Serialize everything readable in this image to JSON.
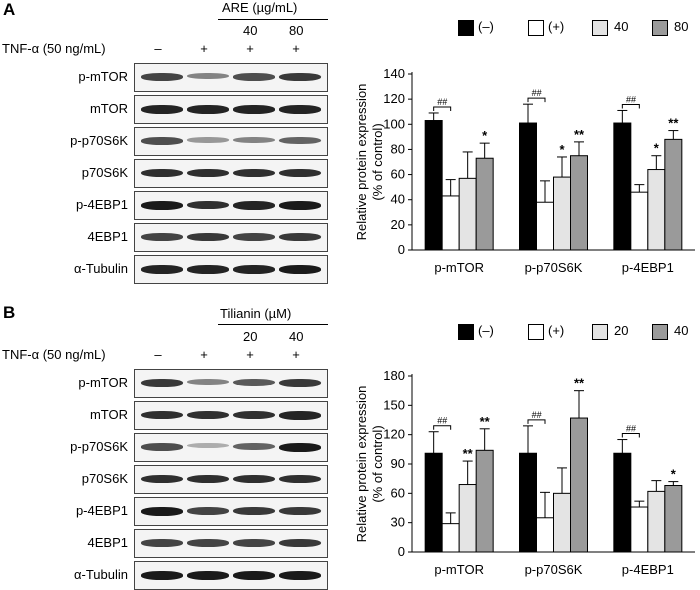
{
  "panels": [
    {
      "letter": "A",
      "treatment": "ARE (µg/mL)",
      "tnf_label": "TNF-α (50 ng/mL)",
      "doses": [
        "40",
        "80"
      ],
      "tnf_signs": [
        "–",
        "+",
        "+",
        "+"
      ],
      "blot_rows": [
        {
          "label": "p-mTOR",
          "intensity": [
            0.75,
            0.45,
            0.7,
            0.8
          ]
        },
        {
          "label": "mTOR",
          "intensity": [
            0.9,
            0.9,
            0.9,
            0.9
          ]
        },
        {
          "label": "p-p70S6K",
          "intensity": [
            0.7,
            0.35,
            0.45,
            0.6
          ]
        },
        {
          "label": "p70S6K",
          "intensity": [
            0.85,
            0.85,
            0.85,
            0.85
          ]
        },
        {
          "label": "p-4EBP1",
          "intensity": [
            0.95,
            0.85,
            0.9,
            0.95
          ]
        },
        {
          "label": "4EBP1",
          "intensity": [
            0.75,
            0.8,
            0.75,
            0.8
          ]
        },
        {
          "label": "α-Tubulin",
          "intensity": [
            0.9,
            0.9,
            0.9,
            0.95
          ]
        }
      ],
      "legend": [
        "(–)",
        "(+)",
        "40",
        "80"
      ],
      "chart_data": {
        "type": "bar",
        "ylabel": "Relative protein expression\n(% of control)",
        "ylim": [
          0,
          140
        ],
        "yticks": [
          0,
          20,
          40,
          60,
          80,
          100,
          120,
          140
        ],
        "categories": [
          "p-mTOR",
          "p-p70S6K",
          "p-4EBP1"
        ],
        "series": [
          {
            "name": "(–)",
            "color": "#000000",
            "values": [
              103,
              101,
              101
            ],
            "errors": [
              6,
              15,
              10
            ]
          },
          {
            "name": "(+)",
            "color": "#ffffff",
            "values": [
              43,
              38,
              46
            ],
            "errors": [
              13,
              17,
              6
            ]
          },
          {
            "name": "40",
            "color": "#e4e4e4",
            "values": [
              57,
              58,
              64
            ],
            "errors": [
              21,
              16,
              11
            ]
          },
          {
            "name": "80",
            "color": "#9a9a9a",
            "values": [
              73,
              75,
              88
            ],
            "errors": [
              12,
              11,
              7
            ]
          }
        ],
        "significance": [
          {
            "category": 0,
            "series": 3,
            "label": "*"
          },
          {
            "category": 1,
            "series": 2,
            "label": "*"
          },
          {
            "category": 1,
            "series": 3,
            "label": "**"
          },
          {
            "category": 2,
            "series": 2,
            "label": "*"
          },
          {
            "category": 2,
            "series": 3,
            "label": "**"
          }
        ],
        "brackets": [
          {
            "category": 0,
            "label": "##"
          },
          {
            "category": 1,
            "label": "##"
          },
          {
            "category": 2,
            "label": "##"
          }
        ]
      }
    },
    {
      "letter": "B",
      "treatment": "Tilianin (µM)",
      "tnf_label": "TNF-α (50 ng/mL)",
      "doses": [
        "20",
        "40"
      ],
      "tnf_signs": [
        "–",
        "+",
        "+",
        "+"
      ],
      "blot_rows": [
        {
          "label": "p-mTOR",
          "intensity": [
            0.8,
            0.45,
            0.65,
            0.8
          ]
        },
        {
          "label": "mTOR",
          "intensity": [
            0.85,
            0.85,
            0.85,
            0.9
          ]
        },
        {
          "label": "p-p70S6K",
          "intensity": [
            0.7,
            0.25,
            0.6,
            0.95
          ]
        },
        {
          "label": "p70S6K",
          "intensity": [
            0.85,
            0.85,
            0.85,
            0.85
          ]
        },
        {
          "label": "p-4EBP1",
          "intensity": [
            0.95,
            0.75,
            0.8,
            0.8
          ]
        },
        {
          "label": "4EBP1",
          "intensity": [
            0.75,
            0.75,
            0.75,
            0.8
          ]
        },
        {
          "label": "α-Tubulin",
          "intensity": [
            0.95,
            0.95,
            0.95,
            0.95
          ]
        }
      ],
      "legend": [
        "(–)",
        "(+)",
        "20",
        "40"
      ],
      "chart_data": {
        "type": "bar",
        "ylabel": "Relative protein expression\n(% of control)",
        "ylim": [
          0,
          180
        ],
        "yticks": [
          0,
          30,
          60,
          90,
          120,
          150,
          180
        ],
        "categories": [
          "p-mTOR",
          "p-p70S6K",
          "p-4EBP1"
        ],
        "series": [
          {
            "name": "(–)",
            "color": "#000000",
            "values": [
              101,
              101,
              101
            ],
            "errors": [
              22,
              28,
              14
            ]
          },
          {
            "name": "(+)",
            "color": "#ffffff",
            "values": [
              29,
              35,
              46
            ],
            "errors": [
              11,
              26,
              6
            ]
          },
          {
            "name": "20",
            "color": "#e4e4e4",
            "values": [
              69,
              60,
              62
            ],
            "errors": [
              24,
              26,
              11
            ]
          },
          {
            "name": "40",
            "color": "#9a9a9a",
            "values": [
              104,
              137,
              68
            ],
            "errors": [
              22,
              28,
              4
            ]
          }
        ],
        "significance": [
          {
            "category": 0,
            "series": 2,
            "label": "**"
          },
          {
            "category": 0,
            "series": 3,
            "label": "**"
          },
          {
            "category": 1,
            "series": 3,
            "label": "**"
          },
          {
            "category": 2,
            "series": 3,
            "label": "*"
          }
        ],
        "brackets": [
          {
            "category": 0,
            "label": "##"
          },
          {
            "category": 1,
            "label": "##"
          },
          {
            "category": 2,
            "label": "##"
          }
        ]
      }
    }
  ]
}
